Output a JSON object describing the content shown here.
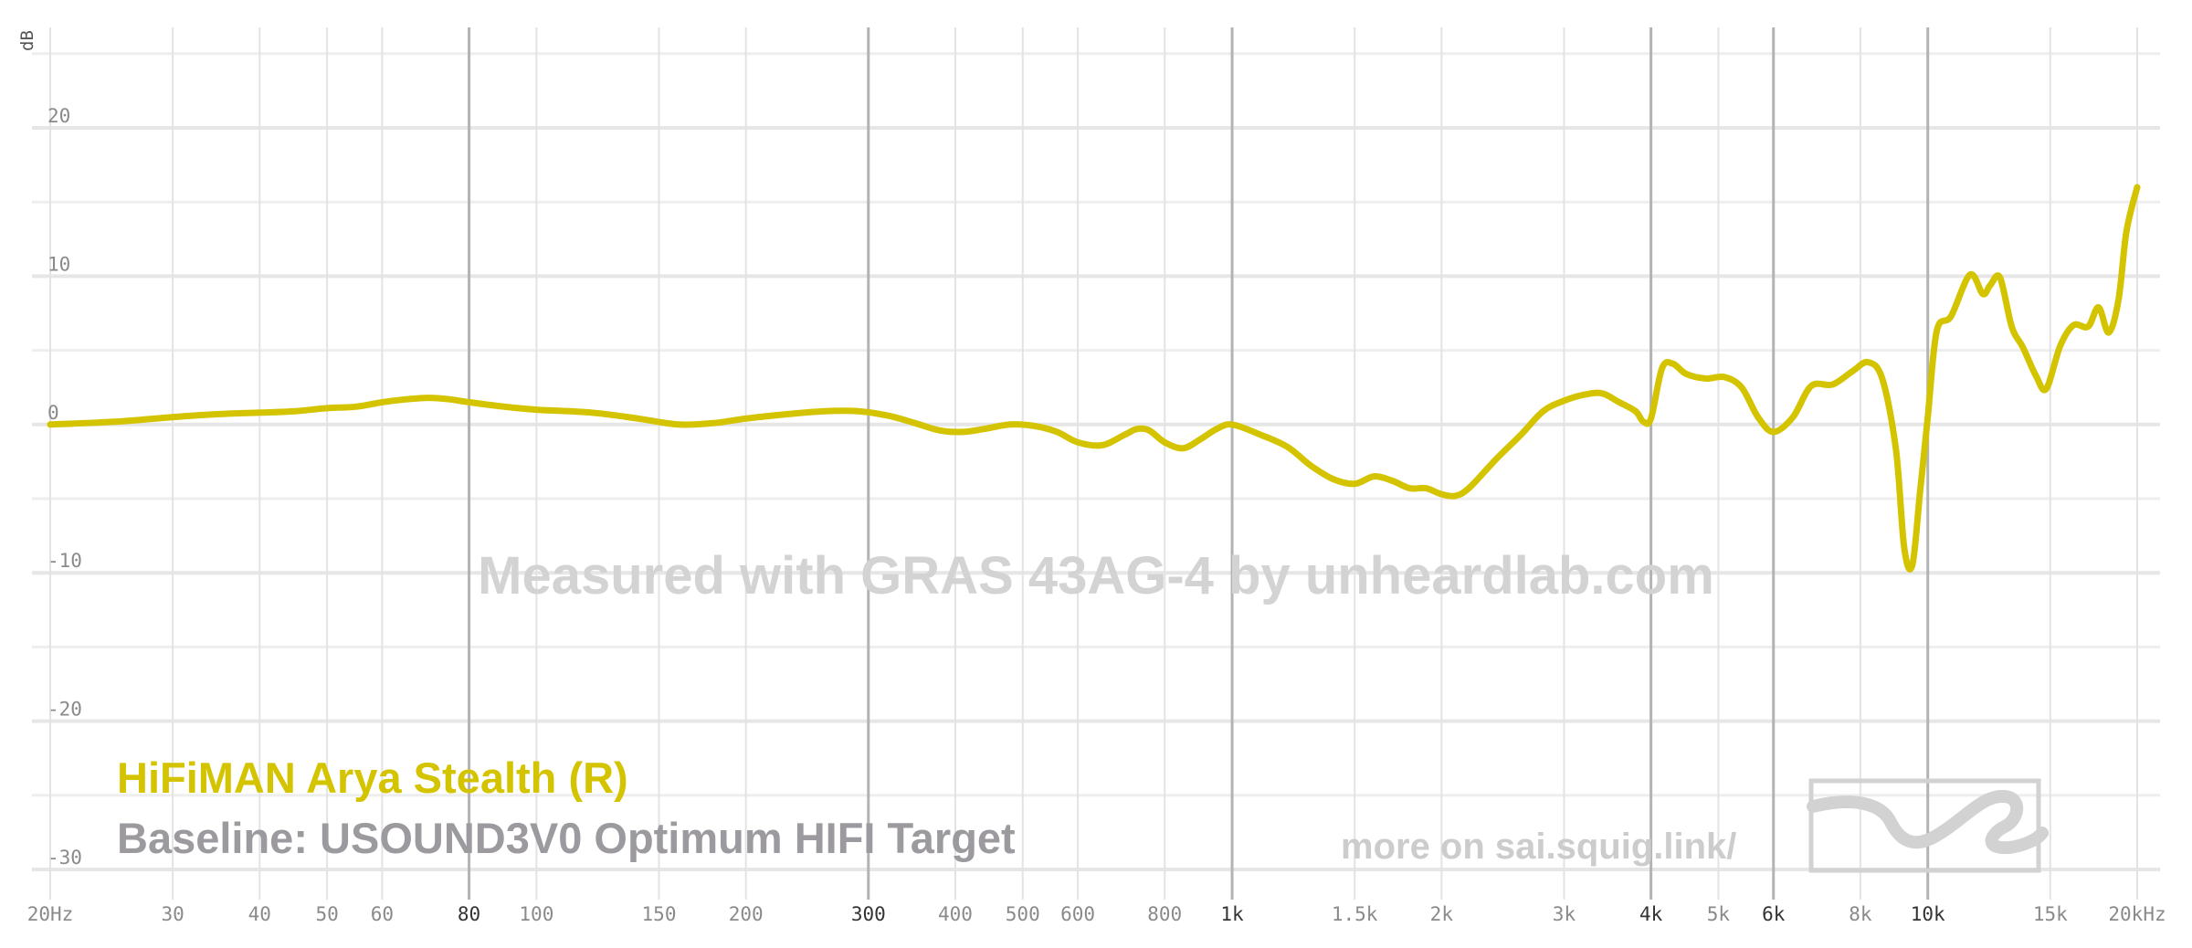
{
  "chart_data": {
    "type": "line",
    "xscale": "log",
    "xlim": [
      20,
      20000
    ],
    "ylim": [
      -32,
      28
    ],
    "ylabel": "dB",
    "grid": true,
    "y_ticks": [
      {
        "value": 20,
        "label": "20"
      },
      {
        "value": 10,
        "label": "10"
      },
      {
        "value": 0,
        "label": "0"
      },
      {
        "value": -10,
        "label": "-10"
      },
      {
        "value": -20,
        "label": "-20"
      },
      {
        "value": -30,
        "label": "-30"
      }
    ],
    "x_ticks": [
      {
        "value": 20,
        "label": "20Hz",
        "major": false
      },
      {
        "value": 30,
        "label": "30",
        "major": false
      },
      {
        "value": 40,
        "label": "40",
        "major": false
      },
      {
        "value": 50,
        "label": "50",
        "major": false
      },
      {
        "value": 60,
        "label": "60",
        "major": false
      },
      {
        "value": 80,
        "label": "80",
        "major": true
      },
      {
        "value": 100,
        "label": "100",
        "major": false
      },
      {
        "value": 150,
        "label": "150",
        "major": false
      },
      {
        "value": 200,
        "label": "200",
        "major": false
      },
      {
        "value": 300,
        "label": "300",
        "major": true
      },
      {
        "value": 400,
        "label": "400",
        "major": false
      },
      {
        "value": 500,
        "label": "500",
        "major": false
      },
      {
        "value": 600,
        "label": "600",
        "major": false
      },
      {
        "value": 800,
        "label": "800",
        "major": false
      },
      {
        "value": 1000,
        "label": "1k",
        "major": true
      },
      {
        "value": 1500,
        "label": "1.5k",
        "major": false
      },
      {
        "value": 2000,
        "label": "2k",
        "major": false
      },
      {
        "value": 3000,
        "label": "3k",
        "major": false
      },
      {
        "value": 4000,
        "label": "4k",
        "major": true
      },
      {
        "value": 5000,
        "label": "5k",
        "major": false
      },
      {
        "value": 6000,
        "label": "6k",
        "major": true
      },
      {
        "value": 8000,
        "label": "8k",
        "major": false
      },
      {
        "value": 10000,
        "label": "10k",
        "major": true
      },
      {
        "value": 15000,
        "label": "15k",
        "major": false
      },
      {
        "value": 20000,
        "label": "20kHz",
        "major": false
      }
    ],
    "series": [
      {
        "name": "HiFiMAN Arya Stealth (R)",
        "color": "#d4c400",
        "x": [
          20,
          25,
          30,
          35,
          40,
          45,
          50,
          55,
          60,
          65,
          70,
          75,
          80,
          90,
          100,
          120,
          140,
          160,
          180,
          200,
          230,
          260,
          290,
          320,
          350,
          380,
          410,
          440,
          480,
          520,
          560,
          600,
          650,
          700,
          730,
          760,
          800,
          850,
          900,
          950,
          1000,
          1100,
          1200,
          1300,
          1400,
          1500,
          1600,
          1700,
          1800,
          1900,
          2000,
          2100,
          2200,
          2400,
          2600,
          2800,
          3000,
          3200,
          3400,
          3600,
          3800,
          3900,
          4000,
          4150,
          4300,
          4500,
          4800,
          5100,
          5400,
          5700,
          6000,
          6400,
          6800,
          7300,
          7800,
          8200,
          8600,
          9000,
          9250,
          9500,
          9750,
          10000,
          10300,
          10800,
          11500,
          12000,
          12300,
          12700,
          13200,
          13700,
          14300,
          14800,
          15500,
          16200,
          17000,
          17600,
          18200,
          18800,
          19300,
          20000
        ],
        "values": [
          0.0,
          0.2,
          0.5,
          0.7,
          0.8,
          0.9,
          1.1,
          1.2,
          1.5,
          1.7,
          1.8,
          1.7,
          1.5,
          1.2,
          1.0,
          0.8,
          0.4,
          0.0,
          0.1,
          0.4,
          0.7,
          0.9,
          0.9,
          0.6,
          0.1,
          -0.4,
          -0.5,
          -0.3,
          0.0,
          -0.1,
          -0.5,
          -1.2,
          -1.4,
          -0.7,
          -0.3,
          -0.4,
          -1.2,
          -1.6,
          -1.0,
          -0.3,
          0.0,
          -0.7,
          -1.5,
          -2.8,
          -3.7,
          -4.0,
          -3.5,
          -3.8,
          -4.3,
          -4.3,
          -4.7,
          -4.8,
          -4.2,
          -2.3,
          -0.7,
          0.9,
          1.6,
          2.0,
          2.1,
          1.5,
          0.9,
          0.2,
          0.4,
          3.8,
          4.1,
          3.4,
          3.1,
          3.2,
          2.5,
          0.5,
          -0.5,
          0.5,
          2.6,
          2.7,
          3.6,
          4.2,
          3.1,
          -1.7,
          -8.3,
          -9.5,
          -4.5,
          0.5,
          6.3,
          7.3,
          10.1,
          8.8,
          9.4,
          9.9,
          6.6,
          5.2,
          3.3,
          2.4,
          5.3,
          6.7,
          6.6,
          7.9,
          6.2,
          8.4,
          13.0,
          16.0
        ]
      }
    ],
    "baseline": "Baseline: USOUND3V0 Optimum HIFI Target"
  },
  "watermark": "Measured with GRAS 43AG-4 by unheardlab.com",
  "footer_link": "more on sai.squig.link/",
  "legend": {
    "title": "HiFiMAN Arya Stealth (R)",
    "title_color": "#d4c400",
    "baseline": "Baseline: USOUND3V0 Optimum HIFI Target",
    "baseline_color": "#9d9a9f"
  },
  "logo_icon": "squiglink-wave-icon"
}
